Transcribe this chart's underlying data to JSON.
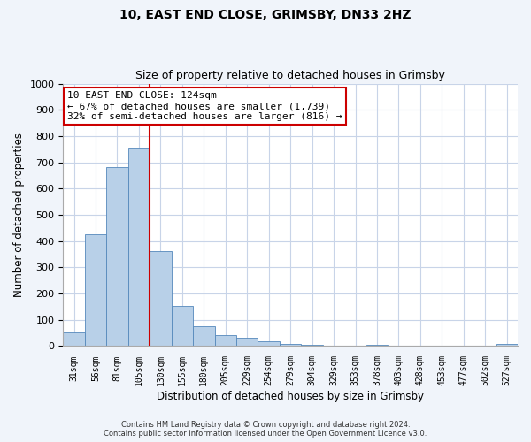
{
  "title": "10, EAST END CLOSE, GRIMSBY, DN33 2HZ",
  "subtitle": "Size of property relative to detached houses in Grimsby",
  "xlabel": "Distribution of detached houses by size in Grimsby",
  "ylabel": "Number of detached properties",
  "bar_labels": [
    "31sqm",
    "56sqm",
    "81sqm",
    "105sqm",
    "130sqm",
    "155sqm",
    "180sqm",
    "205sqm",
    "229sqm",
    "254sqm",
    "279sqm",
    "304sqm",
    "329sqm",
    "353sqm",
    "378sqm",
    "403sqm",
    "428sqm",
    "453sqm",
    "477sqm",
    "502sqm",
    "527sqm"
  ],
  "bar_values": [
    52,
    425,
    682,
    757,
    362,
    152,
    75,
    42,
    32,
    18,
    10,
    5,
    0,
    0,
    5,
    0,
    0,
    0,
    0,
    0,
    8
  ],
  "bar_color": "#b8d0e8",
  "bar_edgecolor": "#5588bb",
  "vline_color": "#cc0000",
  "annotation_text": "10 EAST END CLOSE: 124sqm\n← 67% of detached houses are smaller (1,739)\n32% of semi-detached houses are larger (816) →",
  "annotation_box_facecolor": "white",
  "annotation_box_edgecolor": "#cc0000",
  "ylim": [
    0,
    1000
  ],
  "yticks": [
    0,
    100,
    200,
    300,
    400,
    500,
    600,
    700,
    800,
    900,
    1000
  ],
  "footer_line1": "Contains HM Land Registry data © Crown copyright and database right 2024.",
  "footer_line2": "Contains public sector information licensed under the Open Government Licence v3.0.",
  "bg_color": "#f0f4fa",
  "plot_bg_color": "#ffffff",
  "grid_color": "#c8d4e8",
  "title_fontsize": 10,
  "subtitle_fontsize": 9
}
